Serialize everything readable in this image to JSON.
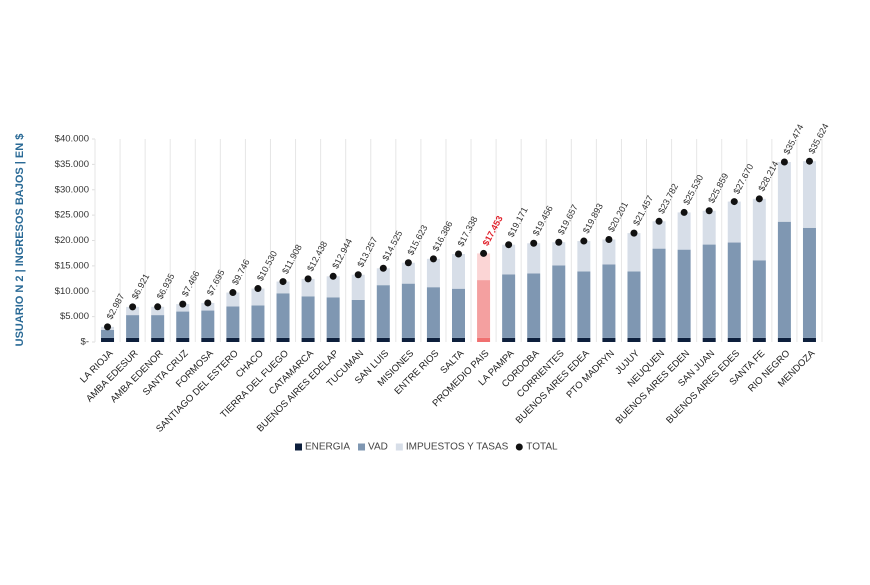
{
  "chart_data": {
    "type": "stacked_bar",
    "y_label": "USUARIO N 2 | INGRESOS BAJOS | EN $",
    "categories": [
      "LA RIOJA",
      "AMBA EDESUR",
      "AMBA EDENOR",
      "SANTA CRUZ",
      "FORMOSA",
      "SANTIAGO DEL ESTERO",
      "CHACO",
      "TIERRA DEL FUEGO",
      "CATAMARCA",
      "BUENOS AIRES EDELAP",
      "TUCUMAN",
      "SAN LUIS",
      "MISIONES",
      "ENTRE RIOS",
      "SALTA",
      "PROMEDIO PAIS",
      "LA PAMPA",
      "CORDOBA",
      "CORRIENTES",
      "BUENOS AIRES EDEA",
      "PTO MADRYN",
      "JUJUY",
      "NEUQUEN",
      "BUENOS AIRES EDEN",
      "SAN JUAN",
      "BUENOS AIRES EDES",
      "SANTA FE",
      "RIO NEGRO",
      "MENDOZA"
    ],
    "series": [
      {
        "name": "ENERGIA",
        "color": "#0d1f3c",
        "values": [
          800,
          800,
          800,
          800,
          800,
          800,
          800,
          800,
          800,
          800,
          800,
          800,
          800,
          800,
          800,
          800,
          800,
          800,
          800,
          800,
          800,
          800,
          800,
          800,
          800,
          800,
          800,
          800,
          800
        ]
      },
      {
        "name": "VAD",
        "color": "#7f97b2",
        "values": [
          1600,
          4500,
          4500,
          5200,
          5400,
          6200,
          6400,
          8800,
          8200,
          8000,
          7500,
          10400,
          10700,
          10000,
          9700,
          11400,
          12500,
          12700,
          14300,
          13100,
          14500,
          13100,
          17600,
          17400,
          18400,
          18800,
          15300,
          22900,
          21700
        ]
      },
      {
        "name": "IMPUESTOS Y TASAS",
        "color": "#d7dee8",
        "values": [
          587,
          1621,
          1635,
          1466,
          1495,
          2746,
          3330,
          2308,
          3438,
          4144,
          4957,
          3325,
          4123,
          5586,
          6838,
          5253,
          5871,
          5956,
          4557,
          5993,
          4901,
          7557,
          5382,
          7330,
          6659,
          8070,
          12114,
          11774,
          13124
        ]
      },
      {
        "name": "TOTAL",
        "color": "#111111",
        "marker": "dot",
        "values": [
          2987,
          6921,
          6935,
          7466,
          7695,
          9746,
          10530,
          11908,
          12438,
          12944,
          13257,
          14525,
          15623,
          16386,
          17338,
          17453,
          19171,
          19456,
          19657,
          19893,
          20201,
          21457,
          23782,
          25530,
          25859,
          27670,
          28214,
          35474,
          35624
        ],
        "value_labels": [
          "$2.987",
          "$6.921",
          "$6.935",
          "$7.466",
          "$7.695",
          "$9.746",
          "$10.530",
          "$11.908",
          "$12.438",
          "$12.944",
          "$13.257",
          "$14.525",
          "$15.623",
          "$16.386",
          "$17.338",
          "$17.453",
          "$19.171",
          "$19.456",
          "$19.657",
          "$19.893",
          "$20.201",
          "$21.457",
          "$23.782",
          "$25.530",
          "$25.859",
          "$27.670",
          "$28.214",
          "$35.474",
          "$35.624"
        ]
      }
    ],
    "highlight": {
      "index": 15,
      "colors": [
        "#f07070",
        "#f4a0a0",
        "#fbd5d5"
      ],
      "label_color": "#e0202a"
    },
    "ylim": [
      0,
      40000
    ],
    "yticks": [
      {
        "value": 0,
        "label": "$-"
      },
      {
        "value": 5000,
        "label": "$5.000"
      },
      {
        "value": 10000,
        "label": "$10.000"
      },
      {
        "value": 15000,
        "label": "$15.000"
      },
      {
        "value": 20000,
        "label": "$20.000"
      },
      {
        "value": 25000,
        "label": "$25.000"
      },
      {
        "value": 30000,
        "label": "$30.000"
      },
      {
        "value": 35000,
        "label": "$35.000"
      },
      {
        "value": 40000,
        "label": "$40.000"
      }
    ],
    "grid": false,
    "legend": "bottom"
  }
}
